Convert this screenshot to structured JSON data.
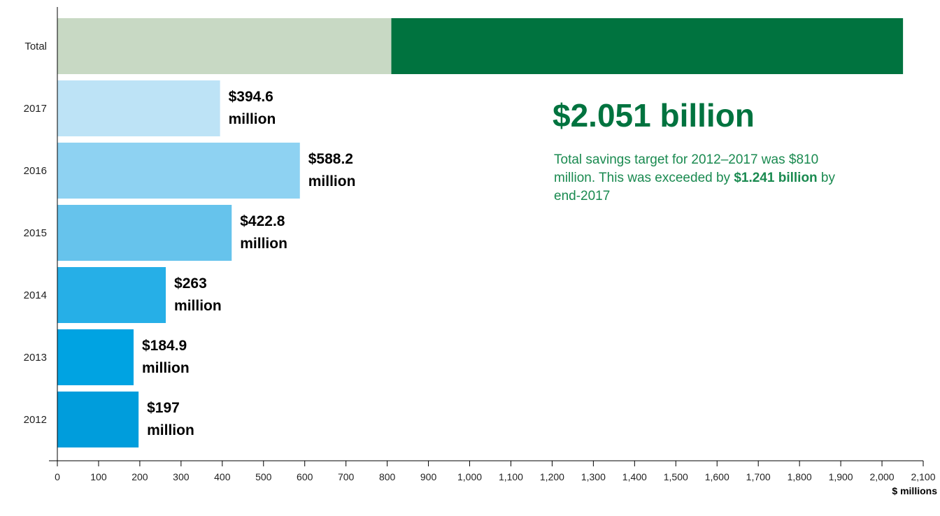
{
  "chart_data": {
    "type": "bar",
    "orientation": "horizontal",
    "categories": [
      "Total",
      "2017",
      "2016",
      "2015",
      "2014",
      "2013",
      "2012"
    ],
    "bars": [
      {
        "category": "Total",
        "segments": [
          {
            "value": 810,
            "color": "#c8d9c4"
          },
          {
            "value": 1241,
            "color": "#00733f"
          }
        ]
      },
      {
        "category": "2017",
        "value": 394.6,
        "label_line1": "$394.6",
        "label_line2": "million",
        "color": "#bde3f6"
      },
      {
        "category": "2016",
        "value": 588.2,
        "label_line1": "$588.2",
        "label_line2": "million",
        "color": "#8ed2f2"
      },
      {
        "category": "2015",
        "value": 422.8,
        "label_line1": "$422.8",
        "label_line2": "million",
        "color": "#66c3ec"
      },
      {
        "category": "2014",
        "value": 263,
        "label_line1": "$263",
        "label_line2": "million",
        "color": "#26afe7"
      },
      {
        "category": "2013",
        "value": 184.9,
        "label_line1": "$184.9",
        "label_line2": "million",
        "color": "#00a3e2"
      },
      {
        "category": "2012",
        "value": 197,
        "label_line1": "$197",
        "label_line2": "million",
        "color": "#009ddc"
      }
    ],
    "xlim": [
      0,
      2100
    ],
    "xticks": [
      0,
      100,
      200,
      300,
      400,
      500,
      600,
      700,
      800,
      900,
      1000,
      1100,
      1200,
      1300,
      1400,
      1500,
      1600,
      1700,
      1800,
      1900,
      2000,
      2100
    ],
    "xtick_labels": [
      "0",
      "100",
      "200",
      "300",
      "400",
      "500",
      "600",
      "700",
      "800",
      "900",
      "1,000",
      "1,100",
      "1,200",
      "1,300",
      "1,400",
      "1,500",
      "1,600",
      "1,700",
      "1,800",
      "1,900",
      "2,000",
      "2,100"
    ],
    "xlabel": "$ millions",
    "title": "",
    "grid": false
  },
  "annotation": {
    "headline": "$2.051 billion",
    "note_part1": "Total savings target for 2012–2017 was $810 million. This was exceeded by ",
    "note_bold": "$1.241 billion",
    "note_part2": " by end-2017"
  },
  "colors": {
    "headline": "#00733f",
    "note": "#1a8a50",
    "axis": "#000000"
  }
}
